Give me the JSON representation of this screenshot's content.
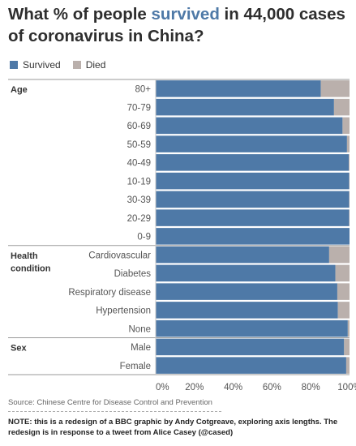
{
  "title": {
    "before": "What % of people ",
    "highlight": "survived",
    "after": " in 44,000 cases of coronavirus in China?"
  },
  "legend": [
    {
      "label": "Survived",
      "color": "#4e79a7"
    },
    {
      "label": "Died",
      "color": "#bab0ac"
    }
  ],
  "chart_data": {
    "type": "bar",
    "orientation": "horizontal",
    "stacked": true,
    "xlim": [
      0,
      100
    ],
    "xticks": [
      0,
      20,
      40,
      60,
      80,
      100
    ],
    "xtick_labels": [
      "0%",
      "20%",
      "40%",
      "60%",
      "80%",
      "100%"
    ],
    "groups": [
      {
        "label": "Age",
        "categories": [
          "80+",
          "70-79",
          "60-69",
          "50-59",
          "40-49",
          "10-19",
          "30-39",
          "20-29",
          "0-9"
        ]
      },
      {
        "label": "Health condition",
        "categories": [
          "Cardiovascular",
          "Diabetes",
          "Respiratory disease",
          "Hypertension",
          "None"
        ]
      },
      {
        "label": "Sex",
        "categories": [
          "Male",
          "Female"
        ]
      }
    ],
    "series": [
      {
        "name": "Survived",
        "color": "#4e79a7",
        "values": [
          85.2,
          92.0,
          96.4,
          98.7,
          99.6,
          99.8,
          99.8,
          99.8,
          100.0,
          89.5,
          92.7,
          93.7,
          94.0,
          99.1,
          97.2,
          98.3
        ]
      },
      {
        "name": "Died",
        "color": "#bab0ac",
        "values": [
          14.8,
          8.0,
          3.6,
          1.3,
          0.4,
          0.2,
          0.2,
          0.2,
          0.0,
          10.5,
          7.3,
          6.3,
          6.0,
          0.9,
          2.8,
          1.7
        ]
      }
    ],
    "grid": false,
    "legend_position": "top-left"
  },
  "source": "Source: Chinese Centre for Disease Control and Prevention",
  "note": "NOTE: this is a redesign of a BBC graphic by Andy Cotgreave, exploring axis lengths. The redesign is in response to a tweet from Alice Casey (@cased)"
}
